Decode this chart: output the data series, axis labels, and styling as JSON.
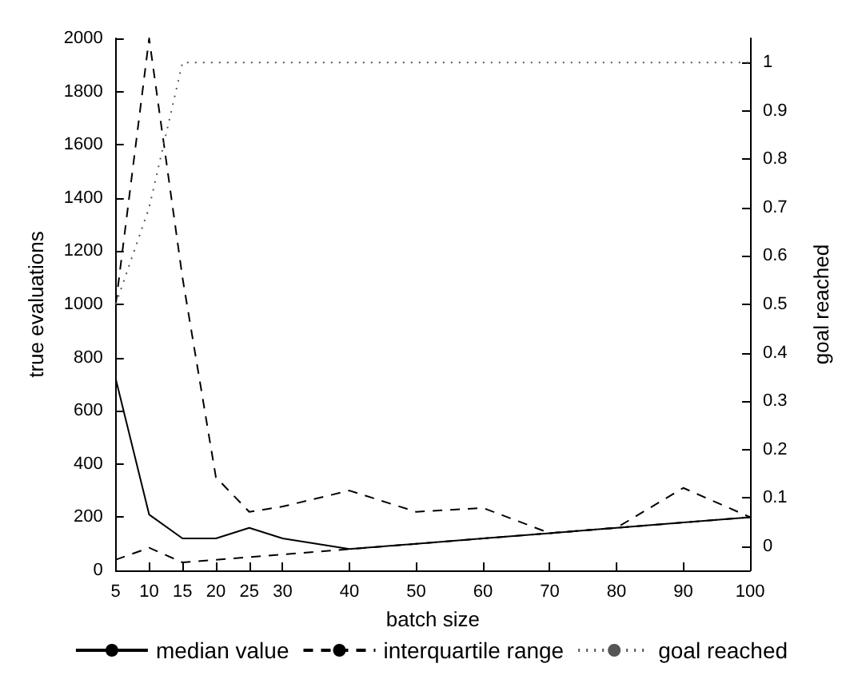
{
  "chart_data": {
    "type": "line",
    "xlabel": "batch size",
    "ylabel": "true evaluations",
    "y2label": "goal reached",
    "x": [
      5,
      10,
      15,
      20,
      25,
      30,
      40,
      50,
      60,
      70,
      80,
      90,
      100
    ],
    "series": [
      {
        "name": "median value",
        "color": "#000000",
        "line_style": "solid",
        "values": [
          720,
          210,
          120,
          120,
          160,
          120,
          80,
          100,
          120,
          140,
          160,
          180,
          200
        ]
      },
      {
        "name": "interquartile range",
        "color": "#000000",
        "line_style": "dashed",
        "values": [
          1000,
          2000,
          1100,
          350,
          220,
          240,
          300,
          220,
          235,
          140,
          160,
          310,
          200
        ]
      },
      {
        "color": "#000000",
        "line_style": "dashed",
        "values": [
          40,
          85,
          30,
          40,
          50,
          60,
          80,
          100,
          120,
          140,
          160,
          180,
          200
        ]
      },
      {
        "name": "goal reached",
        "color": "#555555",
        "line_style": "dotted",
        "axis": "y2",
        "values": [
          0.5,
          0.7,
          1,
          1,
          1,
          1,
          1,
          1,
          1,
          1,
          1,
          1,
          1
        ]
      }
    ],
    "xlim": [
      5,
      100
    ],
    "xticks": [
      5,
      10,
      15,
      20,
      25,
      30,
      40,
      50,
      60,
      70,
      80,
      90,
      100
    ],
    "ylim": [
      0,
      2000
    ],
    "yticks": [
      0,
      200,
      400,
      600,
      800,
      1000,
      1200,
      1400,
      1600,
      1800,
      2000
    ],
    "y2lim": [
      -0.05,
      1.05
    ],
    "y2ticks": [
      0,
      0.1,
      0.2,
      0.3,
      0.4,
      0.5,
      0.6,
      0.7,
      0.8,
      0.9,
      1
    ],
    "grid": false,
    "marker": "none",
    "legend": "bottom"
  }
}
